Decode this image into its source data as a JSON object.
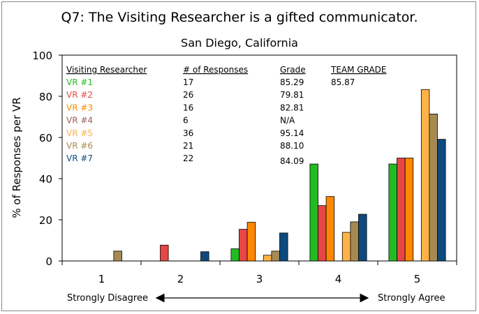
{
  "title": "Q7: The Visiting Researcher is a gifted communicator.",
  "subtitle": "San Diego, California",
  "chart_data": {
    "type": "bar",
    "categories": [
      "1",
      "2",
      "3",
      "4",
      "5"
    ],
    "ylabel": "% of Responses per VR",
    "xlabel": "",
    "ylim": [
      0,
      100
    ],
    "yticks": [
      0,
      20,
      40,
      60,
      80,
      100
    ],
    "grid": false,
    "scale_left_label": "Strongly Disagree",
    "scale_right_label": "Strongly Agree",
    "legend_headers": {
      "name": "Visiting Researcher",
      "responses": "# of Responses",
      "grade": "Grade",
      "team_grade": "TEAM GRADE"
    },
    "team_grade_value": "85.87",
    "series": [
      {
        "name": "VR #1",
        "color": "#22bb22",
        "responses": "17",
        "grade": "85.29",
        "values": [
          0,
          0,
          5.9,
          47.1,
          47.1
        ]
      },
      {
        "name": "VR #2",
        "color": "#e84545",
        "responses": "26",
        "grade": "79.81",
        "values": [
          0,
          7.7,
          15.4,
          26.9,
          50.0
        ]
      },
      {
        "name": "VR #3",
        "color": "#ff8800",
        "responses": "16",
        "grade": "82.81",
        "values": [
          0,
          0,
          18.8,
          31.3,
          50.0
        ]
      },
      {
        "name": "VR #4",
        "color": "#9b5e5e",
        "responses": "6",
        "grade": "N/A",
        "values": [
          0,
          0,
          0,
          0,
          0
        ]
      },
      {
        "name": "VR #5",
        "color": "#ffb347",
        "responses": "36",
        "grade": "95.14",
        "values": [
          0,
          0,
          2.8,
          13.9,
          83.3
        ]
      },
      {
        "name": "VR #6",
        "color": "#a68a52",
        "responses": "21",
        "grade": "88.10",
        "values": [
          4.8,
          0,
          4.8,
          19.0,
          71.4
        ]
      },
      {
        "name": "VR #7",
        "color": "#0e4a7e",
        "responses": "22",
        "grade": "84.09",
        "values": [
          0,
          4.5,
          13.6,
          22.7,
          59.1
        ]
      }
    ]
  }
}
